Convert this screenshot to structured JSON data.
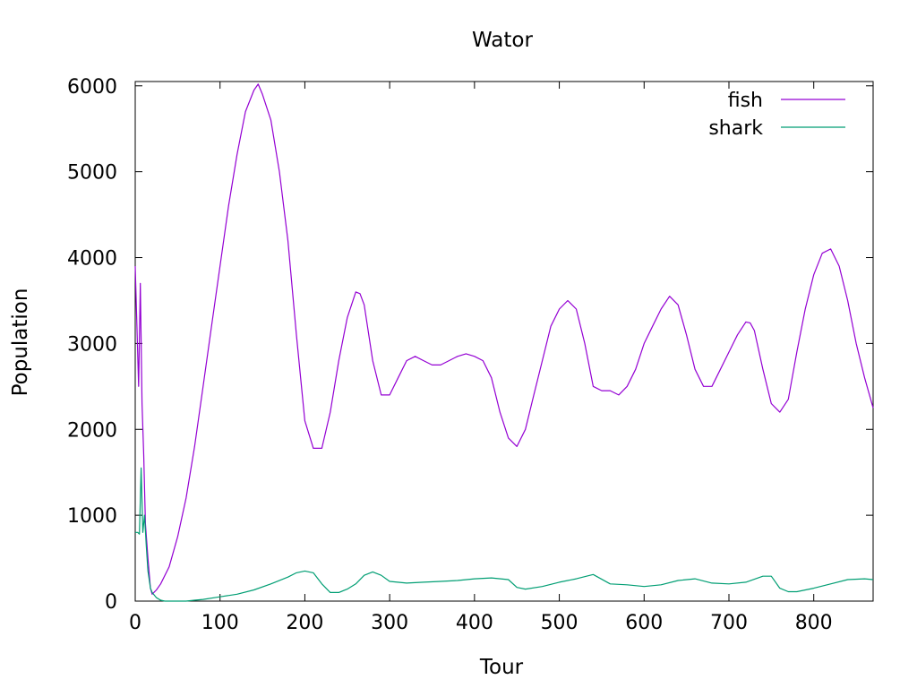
{
  "chart_data": {
    "type": "line",
    "title": "Wator",
    "xlabel": "Tour",
    "ylabel": "Population",
    "xlim": [
      0,
      870
    ],
    "ylim": [
      0,
      6050
    ],
    "xticks": [
      0,
      100,
      200,
      300,
      400,
      500,
      600,
      700,
      800
    ],
    "yticks": [
      0,
      1000,
      2000,
      3000,
      4000,
      5000,
      6000
    ],
    "legend_position": "top-right",
    "grid": false,
    "series": [
      {
        "name": "fish",
        "color": "#9400d3",
        "x": [
          0,
          2,
          4,
          6,
          8,
          10,
          12,
          15,
          18,
          20,
          25,
          30,
          40,
          50,
          60,
          70,
          80,
          90,
          100,
          110,
          120,
          130,
          140,
          145,
          150,
          160,
          170,
          180,
          190,
          200,
          210,
          220,
          230,
          240,
          250,
          260,
          265,
          270,
          280,
          290,
          300,
          310,
          320,
          330,
          340,
          350,
          360,
          370,
          380,
          390,
          400,
          410,
          420,
          430,
          440,
          450,
          460,
          470,
          480,
          490,
          500,
          510,
          520,
          530,
          540,
          550,
          560,
          570,
          580,
          590,
          600,
          610,
          620,
          630,
          640,
          650,
          660,
          670,
          680,
          690,
          700,
          710,
          720,
          725,
          730,
          740,
          750,
          760,
          770,
          780,
          790,
          800,
          810,
          820,
          830,
          840,
          850,
          860,
          870
        ],
        "y": [
          3900,
          3200,
          2500,
          3700,
          2300,
          1700,
          900,
          500,
          150,
          80,
          130,
          200,
          400,
          750,
          1200,
          1800,
          2500,
          3200,
          3900,
          4600,
          5200,
          5700,
          5950,
          6020,
          5900,
          5600,
          5000,
          4200,
          3100,
          2100,
          1780,
          1780,
          2200,
          2800,
          3300,
          3600,
          3580,
          3450,
          2800,
          2400,
          2400,
          2600,
          2800,
          2850,
          2800,
          2750,
          2750,
          2800,
          2850,
          2880,
          2850,
          2800,
          2600,
          2200,
          1900,
          1800,
          2000,
          2400,
          2800,
          3200,
          3400,
          3500,
          3400,
          3000,
          2500,
          2450,
          2450,
          2400,
          2500,
          2700,
          3000,
          3200,
          3400,
          3550,
          3450,
          3100,
          2700,
          2500,
          2500,
          2700,
          2900,
          3100,
          3250,
          3240,
          3150,
          2700,
          2300,
          2200,
          2350,
          2900,
          3400,
          3800,
          4050,
          4100,
          3900,
          3500,
          3000,
          2600,
          2250
        ]
      },
      {
        "name": "shark",
        "color": "#009e73",
        "x": [
          0,
          3,
          5,
          7,
          9,
          11,
          13,
          15,
          18,
          20,
          25,
          30,
          35,
          40,
          50,
          60,
          70,
          80,
          100,
          120,
          140,
          160,
          180,
          190,
          200,
          210,
          220,
          230,
          240,
          250,
          260,
          270,
          280,
          290,
          300,
          320,
          340,
          360,
          380,
          400,
          420,
          440,
          450,
          460,
          480,
          500,
          520,
          540,
          560,
          580,
          600,
          620,
          640,
          660,
          680,
          700,
          720,
          740,
          750,
          760,
          770,
          780,
          800,
          820,
          840,
          860,
          870
        ],
        "y": [
          800,
          800,
          780,
          1550,
          800,
          1000,
          650,
          350,
          150,
          100,
          40,
          10,
          0,
          0,
          0,
          0,
          10,
          20,
          50,
          80,
          130,
          200,
          280,
          330,
          350,
          330,
          200,
          100,
          100,
          140,
          200,
          300,
          340,
          300,
          230,
          210,
          220,
          230,
          240,
          260,
          270,
          250,
          160,
          140,
          170,
          220,
          260,
          310,
          200,
          190,
          170,
          190,
          240,
          260,
          210,
          200,
          220,
          290,
          290,
          150,
          110,
          110,
          150,
          200,
          250,
          260,
          250
        ]
      }
    ]
  }
}
